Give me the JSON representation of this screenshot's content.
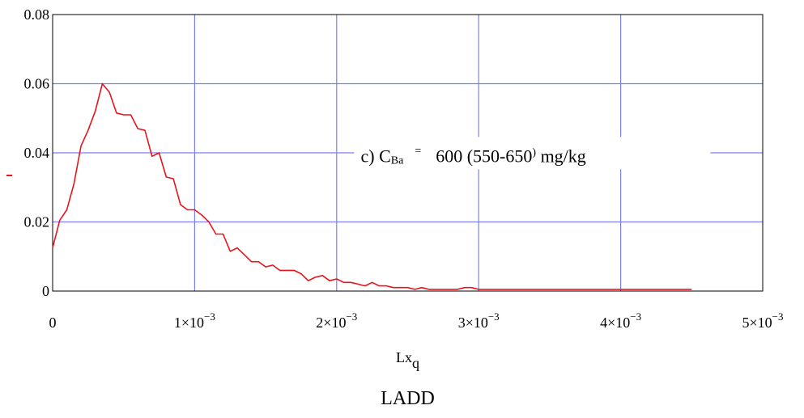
{
  "chart_data": {
    "type": "line",
    "title": "",
    "xlabel": "Lx",
    "xlabel_subscript": "q",
    "ylabel": "",
    "caption": "LADD",
    "xlim": [
      0,
      0.005
    ],
    "ylim": [
      0,
      0.08
    ],
    "grid": true,
    "colors": {
      "line": "#e8141c",
      "grid": "#7b7ff0",
      "axis": "#000000",
      "ylabel_tick": "#e8141c"
    },
    "y_ticks": [
      {
        "value": 0,
        "label": "0"
      },
      {
        "value": 0.02,
        "label": "0.02"
      },
      {
        "value": 0.04,
        "label": "0.04"
      },
      {
        "value": 0.06,
        "label": "0.06"
      },
      {
        "value": 0.08,
        "label": "0.08"
      }
    ],
    "x_ticks": [
      {
        "value": 0,
        "mantissa": "0",
        "exponent": ""
      },
      {
        "value": 0.001,
        "mantissa": "1×10",
        "exponent": "−3"
      },
      {
        "value": 0.002,
        "mantissa": "2×10",
        "exponent": "−3"
      },
      {
        "value": 0.003,
        "mantissa": "3×10",
        "exponent": "−3"
      },
      {
        "value": 0.004,
        "mantissa": "4×10",
        "exponent": "−3"
      },
      {
        "value": 0.005,
        "mantissa": "5×10",
        "exponent": "−3"
      }
    ],
    "annotation": {
      "prefix": "c) C",
      "subscript": "Ba",
      "equals": "=",
      "value": "600 (550-650",
      "close": ")",
      "unit": " mg/kg",
      "x": 0.0025,
      "y": 0.0385
    },
    "series": [
      {
        "x": [
          0,
          5e-05,
          0.0001,
          0.00015,
          0.0002,
          0.00025,
          0.0003,
          0.00035,
          0.0004,
          0.00045,
          0.0005,
          0.00055,
          0.0006,
          0.00065,
          0.0007,
          0.00075,
          0.0008,
          0.00085,
          0.0009,
          0.00095,
          0.001,
          0.00105,
          0.0011,
          0.00115,
          0.0012,
          0.00125,
          0.0013,
          0.00135,
          0.0014,
          0.00145,
          0.0015,
          0.00155,
          0.0016,
          0.00165,
          0.0017,
          0.00175,
          0.0018,
          0.00185,
          0.0019,
          0.00195,
          0.002,
          0.00205,
          0.0021,
          0.00215,
          0.0022,
          0.00225,
          0.0023,
          0.00235,
          0.0024,
          0.00245,
          0.0025,
          0.00255,
          0.0026,
          0.00265,
          0.0027,
          0.00275,
          0.0028,
          0.00285,
          0.0029,
          0.00295,
          0.003,
          0.0031,
          0.0032,
          0.0033,
          0.0034,
          0.0035,
          0.0036,
          0.0038,
          0.004,
          0.0042,
          0.0044,
          0.0045
        ],
        "y": [
          0.0125,
          0.0205,
          0.0235,
          0.031,
          0.042,
          0.0465,
          0.052,
          0.06,
          0.0575,
          0.0515,
          0.051,
          0.051,
          0.047,
          0.0465,
          0.039,
          0.04,
          0.033,
          0.0325,
          0.025,
          0.0235,
          0.0235,
          0.022,
          0.02,
          0.0165,
          0.0165,
          0.0115,
          0.0125,
          0.0105,
          0.0085,
          0.0085,
          0.007,
          0.0075,
          0.006,
          0.006,
          0.006,
          0.005,
          0.003,
          0.004,
          0.0045,
          0.003,
          0.0035,
          0.0025,
          0.0025,
          0.002,
          0.0015,
          0.0025,
          0.0015,
          0.0015,
          0.001,
          0.001,
          0.001,
          0.0005,
          0.001,
          0.0005,
          0.0005,
          0.0005,
          0.0005,
          0.0005,
          0.001,
          0.001,
          0.0005,
          0.0005,
          0.0005,
          0.0005,
          0.0005,
          0.0005,
          0.0005,
          0.0005,
          0.0005,
          0.0005,
          0.0005,
          0.0005
        ]
      }
    ]
  }
}
